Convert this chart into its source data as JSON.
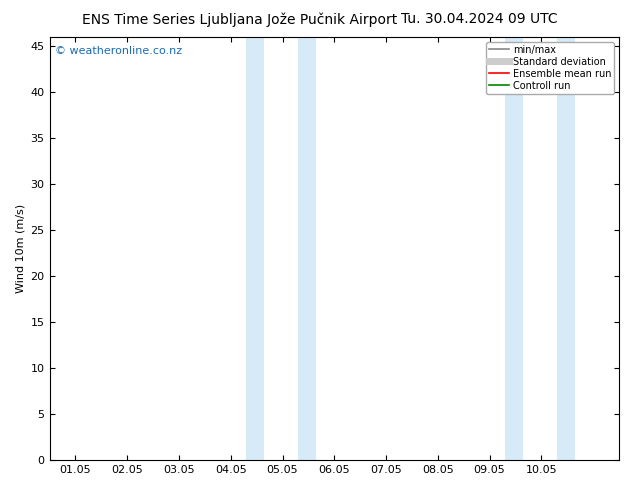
{
  "title_left": "ENS Time Series Ljubljana Jože Pučnik Airport",
  "title_right": "Tu. 30.04.2024 09 UTC",
  "ylabel": "Wind 10m (m/s)",
  "watermark": "© weatheronline.co.nz",
  "xlim": [
    -0.5,
    10.5
  ],
  "ylim": [
    0,
    46
  ],
  "yticks": [
    0,
    5,
    10,
    15,
    20,
    25,
    30,
    35,
    40,
    45
  ],
  "xtick_labels": [
    "01.05",
    "02.05",
    "03.05",
    "04.05",
    "05.05",
    "06.05",
    "07.05",
    "08.05",
    "09.05",
    "10.05"
  ],
  "xtick_positions": [
    0,
    1,
    2,
    3,
    4,
    5,
    6,
    7,
    8,
    9
  ],
  "shade_bands": [
    [
      3.3,
      3.65
    ],
    [
      4.3,
      4.65
    ],
    [
      8.3,
      8.65
    ],
    [
      9.3,
      9.65
    ]
  ],
  "shade_color": "#d6eaf8",
  "background_color": "#ffffff",
  "plot_bg_color": "#ffffff",
  "legend_entries": [
    {
      "label": "min/max",
      "color": "#888888",
      "lw": 1.2
    },
    {
      "label": "Standard deviation",
      "color": "#cccccc",
      "lw": 5
    },
    {
      "label": "Ensemble mean run",
      "color": "#ff0000",
      "lw": 1.2
    },
    {
      "label": "Controll run",
      "color": "#008800",
      "lw": 1.2
    }
  ],
  "title_fontsize": 10,
  "axis_fontsize": 8,
  "watermark_color": "#1a6bb5",
  "watermark_fontsize": 8
}
